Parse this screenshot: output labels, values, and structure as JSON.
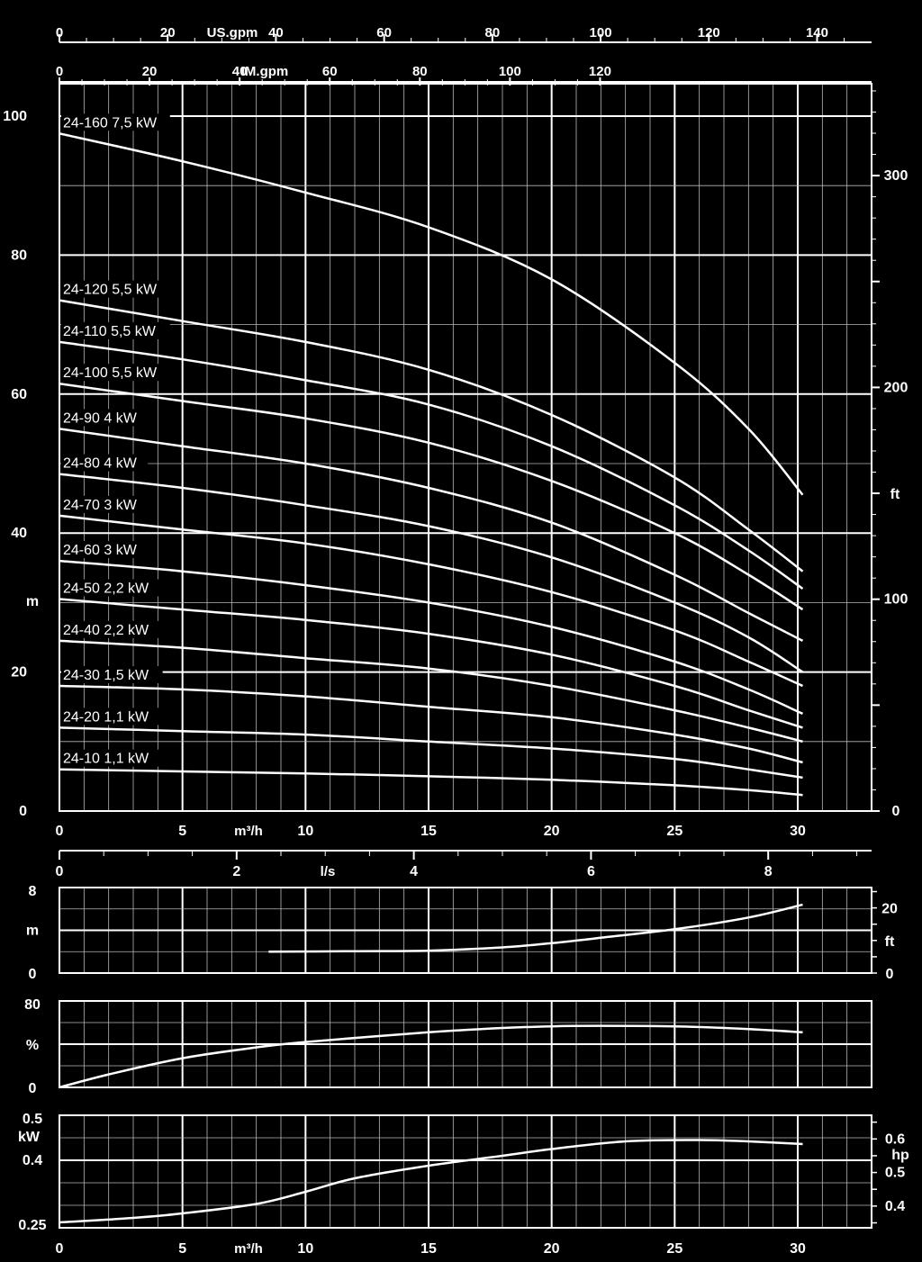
{
  "chart_data": [
    {
      "type": "line",
      "title": "",
      "xlabel": "m³/h",
      "ylabel": "m",
      "y2label": "ft",
      "xlim": [
        0,
        33
      ],
      "ylim": [
        0,
        105
      ],
      "xticks": [
        0,
        5,
        10,
        15,
        20,
        25,
        30
      ],
      "yticks": [
        0,
        20,
        40,
        60,
        80,
        100
      ],
      "y2ticks": [
        0,
        100,
        200,
        300
      ],
      "grid": true,
      "top_axes": [
        {
          "label": "US.gpm",
          "ticks": [
            0,
            20,
            40,
            60,
            80,
            100,
            120,
            140
          ]
        },
        {
          "label": "IM.gpm",
          "ticks": [
            0,
            20,
            40,
            60,
            80,
            100,
            120
          ]
        }
      ],
      "series": [
        {
          "name": "24-160  7,5 kW",
          "x": [
            0,
            5,
            10,
            15,
            20,
            25,
            28,
            30.2
          ],
          "y": [
            97.5,
            93.5,
            89,
            84,
            76.5,
            64.5,
            55,
            45.5
          ]
        },
        {
          "name": "24-120  5,5 kW",
          "x": [
            0,
            5,
            10,
            15,
            20,
            25,
            28,
            30.2
          ],
          "y": [
            73.5,
            70.5,
            67.5,
            63.5,
            57,
            48,
            40.5,
            34.5
          ]
        },
        {
          "name": "24-110  5,5 kW",
          "x": [
            0,
            5,
            10,
            15,
            20,
            25,
            28,
            30.2
          ],
          "y": [
            67.5,
            65,
            62,
            58.5,
            52.5,
            44,
            37.5,
            32
          ]
        },
        {
          "name": "24-100  5,5 kW",
          "x": [
            0,
            5,
            10,
            15,
            20,
            25,
            28,
            30.2
          ],
          "y": [
            61.5,
            59,
            56.5,
            53,
            47.5,
            40,
            34,
            29
          ]
        },
        {
          "name": "24-90  4 kW",
          "x": [
            0,
            5,
            10,
            15,
            20,
            25,
            28,
            30.2
          ],
          "y": [
            55,
            52.5,
            50,
            46.5,
            41.5,
            34,
            28.5,
            24.5
          ]
        },
        {
          "name": "24-80  4 kW",
          "x": [
            0,
            5,
            10,
            15,
            20,
            25,
            28,
            30.2
          ],
          "y": [
            48.5,
            46.5,
            44,
            41,
            36.5,
            30,
            25,
            20
          ]
        },
        {
          "name": "24-70  3 kW",
          "x": [
            0,
            5,
            10,
            15,
            20,
            25,
            28,
            30.2
          ],
          "y": [
            42.5,
            40.5,
            38.5,
            35.5,
            31.5,
            26,
            21.5,
            18
          ]
        },
        {
          "name": "24-60  3 kW",
          "x": [
            0,
            5,
            10,
            15,
            20,
            25,
            28,
            30.2
          ],
          "y": [
            36,
            34.5,
            32.5,
            30,
            26.5,
            21.5,
            17.5,
            14
          ]
        },
        {
          "name": "24-50  2,2 kW",
          "x": [
            0,
            5,
            10,
            15,
            20,
            25,
            28,
            30.2
          ],
          "y": [
            30.5,
            29,
            27.5,
            25.5,
            22.5,
            18,
            14.5,
            12
          ]
        },
        {
          "name": "24-40  2,2 kW",
          "x": [
            0,
            5,
            10,
            15,
            20,
            25,
            28,
            30.2
          ],
          "y": [
            24.5,
            23.5,
            22,
            20.5,
            18,
            14.5,
            12,
            10
          ]
        },
        {
          "name": "24-30  1,5 kW",
          "x": [
            0,
            5,
            10,
            15,
            20,
            25,
            28,
            30.2
          ],
          "y": [
            18,
            17.5,
            16.5,
            15,
            13.5,
            11,
            9,
            7
          ]
        },
        {
          "name": "24-20  1,1 kW",
          "x": [
            0,
            5,
            10,
            15,
            20,
            25,
            28,
            30.2
          ],
          "y": [
            12,
            11.5,
            11,
            10,
            9,
            7.5,
            6,
            4.8
          ]
        },
        {
          "name": "24-10  1,1 kW",
          "x": [
            0,
            5,
            10,
            15,
            20,
            25,
            28,
            30.2
          ],
          "y": [
            6,
            5.7,
            5.4,
            5,
            4.5,
            3.7,
            3,
            2.3
          ]
        }
      ]
    },
    {
      "type": "line",
      "title": "",
      "xlabel": "l/s",
      "ylabel": "m",
      "y2label": "ft",
      "xlim": [
        0,
        33
      ],
      "ylim": [
        0,
        8
      ],
      "xticks_top": [
        0,
        2,
        4,
        6,
        8
      ],
      "yticks": [
        0,
        4,
        8
      ],
      "ytick_labels": [
        "0",
        "m",
        "8"
      ],
      "y2ticks": [
        0,
        10,
        20
      ],
      "y2tick_labels": [
        "0",
        "ft",
        "20"
      ],
      "grid": true,
      "series": [
        {
          "x": [
            8.5,
            12,
            15,
            18,
            20,
            22,
            25,
            28,
            30.2
          ],
          "y": [
            2.0,
            2.05,
            2.1,
            2.4,
            2.8,
            3.3,
            4.1,
            5.2,
            6.4
          ]
        }
      ]
    },
    {
      "type": "line",
      "title": "",
      "xlabel": "",
      "ylabel": "%",
      "xlim": [
        0,
        33
      ],
      "ylim": [
        0,
        80
      ],
      "yticks": [
        0,
        40,
        80
      ],
      "ytick_labels": [
        "0",
        "%",
        "80"
      ],
      "grid": true,
      "series": [
        {
          "x": [
            0,
            2,
            5,
            8,
            10,
            15,
            18,
            20,
            22,
            25,
            28,
            30.2
          ],
          "y": [
            0,
            12,
            27,
            37,
            42,
            51,
            55,
            56.5,
            57,
            56.5,
            54,
            51
          ]
        }
      ]
    },
    {
      "type": "line",
      "title": "",
      "xlabel": "m³/h",
      "ylabel": "kW",
      "y2label": "hp",
      "xlim": [
        0,
        33
      ],
      "ylim": [
        0.25,
        0.5
      ],
      "xticks": [
        0,
        5,
        10,
        15,
        20,
        25,
        30
      ],
      "yticks": [
        0.25,
        0.4,
        0.5
      ],
      "y2ticks": [
        0.4,
        0.5,
        0.6
      ],
      "grid": true,
      "series": [
        {
          "x": [
            0,
            3,
            5,
            8,
            10,
            12,
            15,
            18,
            20,
            23,
            26,
            28,
            30.2
          ],
          "y": [
            0.262,
            0.272,
            0.282,
            0.303,
            0.33,
            0.36,
            0.388,
            0.41,
            0.425,
            0.442,
            0.445,
            0.442,
            0.436
          ]
        }
      ]
    }
  ]
}
